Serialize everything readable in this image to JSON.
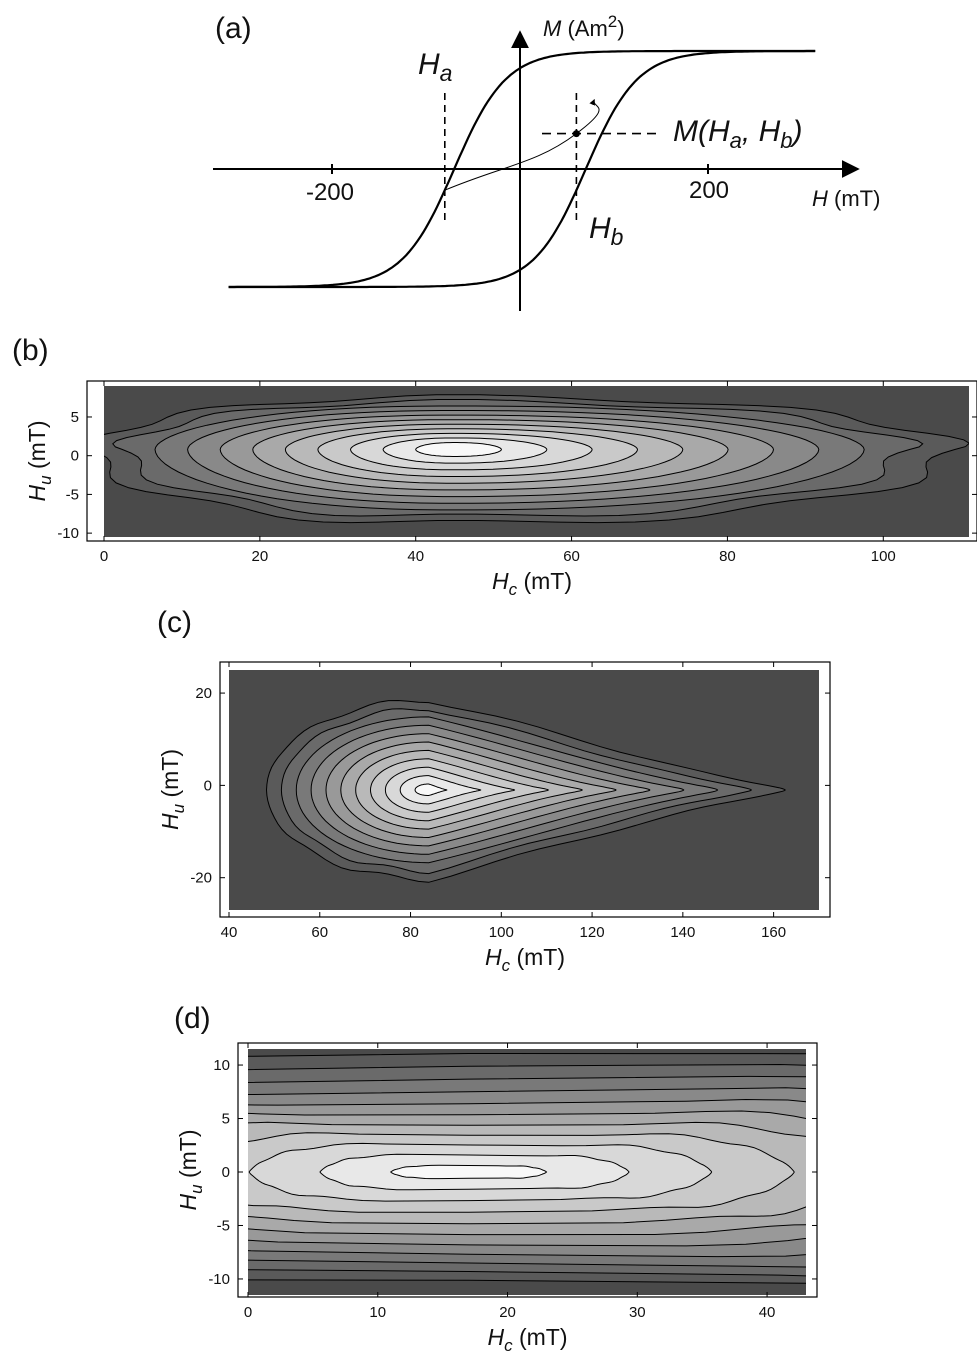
{
  "chart_data": [
    {
      "panel": "(a)",
      "type": "line",
      "x_axis_label": {
        "symbol": "H",
        "unit": "(mT)"
      },
      "y_axis_label": {
        "symbol": "M",
        "unit": "(Am",
        "sup": "2",
        "close": ")"
      },
      "x_ticks": [
        -200,
        200
      ],
      "x_tick_labels": [
        "-200",
        "200"
      ],
      "xlim": [
        -330,
        340
      ],
      "ylim": [
        -1,
        1
      ],
      "annotations": {
        "ha": {
          "main": "H",
          "sub": "a"
        },
        "hb": {
          "main": "H",
          "sub": "b"
        },
        "m": {
          "pre": "M(H",
          "sub1": "a",
          "mid": ", H",
          "sub2": "b",
          "post": ")"
        }
      },
      "field_a": -80,
      "field_b": 60,
      "m_point": [
        60,
        0.3
      ]
    },
    {
      "panel": "(b)",
      "type": "heatmap",
      "xlabel": {
        "main": "H",
        "sub": "c",
        "unit": "(mT)"
      },
      "ylabel": {
        "main": "H",
        "sub": "u",
        "unit": "(mT)"
      },
      "x_ticks": [
        0,
        20,
        40,
        60,
        80,
        100
      ],
      "x_tick_labels": [
        "0",
        "20",
        "40",
        "60",
        "80",
        "100"
      ],
      "y_ticks": [
        5,
        0,
        -5,
        -10
      ],
      "y_tick_labels": [
        "5",
        "0",
        "-5",
        "-10"
      ],
      "xlim": [
        0,
        111
      ],
      "ylim": [
        -10.5,
        9
      ],
      "peak": {
        "hc": 45,
        "hu": 0.8
      },
      "contour_levels": 11
    },
    {
      "panel": "(c)",
      "type": "heatmap",
      "xlabel": {
        "main": "H",
        "sub": "c",
        "unit": "(mT)"
      },
      "ylabel": {
        "main": "H",
        "sub": "u",
        "unit": "(mT)"
      },
      "x_ticks": [
        40,
        60,
        80,
        100,
        120,
        140,
        160
      ],
      "x_tick_labels": [
        "40",
        "60",
        "80",
        "100",
        "120",
        "140",
        "160"
      ],
      "y_ticks": [
        20,
        0,
        -20
      ],
      "y_tick_labels": [
        "20",
        "0",
        "-20"
      ],
      "xlim": [
        40,
        170
      ],
      "ylim": [
        -27,
        25
      ],
      "peak": {
        "hc": 84,
        "hu": -1
      },
      "contour_levels": 11
    },
    {
      "panel": "(d)",
      "type": "heatmap",
      "xlabel": {
        "main": "H",
        "sub": "c",
        "unit": "(mT)"
      },
      "ylabel": {
        "main": "H",
        "sub": "u",
        "unit": "(mT)"
      },
      "x_ticks": [
        0,
        10,
        20,
        30,
        40
      ],
      "x_tick_labels": [
        "0",
        "10",
        "20",
        "30",
        "40"
      ],
      "y_ticks": [
        10,
        5,
        0,
        -5,
        -10
      ],
      "y_tick_labels": [
        "10",
        "5",
        "0",
        "-5",
        "-10"
      ],
      "xlim": [
        0,
        43
      ],
      "ylim": [
        -11.5,
        11.5
      ],
      "peak": {
        "hc": 17,
        "hu": 0
      },
      "contour_levels": 11
    }
  ]
}
